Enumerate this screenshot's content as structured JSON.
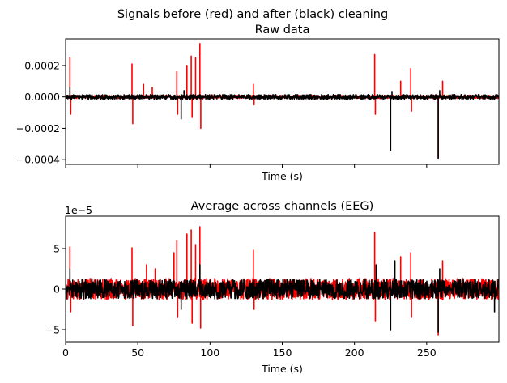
{
  "figure": {
    "suptitle": "Signals before (red) and after (black) cleaning"
  },
  "chart_data": [
    {
      "type": "line",
      "title": "Raw data",
      "xlabel": "Time (s)",
      "ylabel": "",
      "xlim": [
        0,
        300
      ],
      "ylim": [
        -0.00043,
        0.00037
      ],
      "x_ticks": [
        0,
        50,
        100,
        150,
        200,
        250
      ],
      "x_tick_labels_shown": false,
      "y_ticks": [
        -0.0004,
        -0.0002,
        0.0,
        0.0002
      ],
      "y_tick_labels": [
        "−0.0004",
        "−0.0002",
        "0.0000",
        "0.0002"
      ],
      "grid": false,
      "series": [
        {
          "name": "before cleaning",
          "color": "#ff0000",
          "baseline_amplitude": 1e-05,
          "peaks": [
            {
              "x": 3,
              "y": 0.00025
            },
            {
              "x": 3.6,
              "y": -0.00011
            },
            {
              "x": 46,
              "y": 0.00021
            },
            {
              "x": 46.5,
              "y": -0.00017
            },
            {
              "x": 54,
              "y": 8e-05
            },
            {
              "x": 60,
              "y": 6e-05
            },
            {
              "x": 77,
              "y": 0.00016
            },
            {
              "x": 77.6,
              "y": -0.00011
            },
            {
              "x": 84,
              "y": 0.0002
            },
            {
              "x": 87,
              "y": 0.00026
            },
            {
              "x": 87.6,
              "y": -0.00013
            },
            {
              "x": 90,
              "y": 0.00025
            },
            {
              "x": 93,
              "y": 0.00034
            },
            {
              "x": 93.6,
              "y": -0.0002
            },
            {
              "x": 130,
              "y": 8e-05
            },
            {
              "x": 130.5,
              "y": -5e-05
            },
            {
              "x": 214,
              "y": 0.00027
            },
            {
              "x": 214.5,
              "y": -0.00011
            },
            {
              "x": 232,
              "y": 0.0001
            },
            {
              "x": 239,
              "y": 0.00018
            },
            {
              "x": 239.5,
              "y": -9e-05
            },
            {
              "x": 258,
              "y": -0.00039
            },
            {
              "x": 261,
              "y": 0.0001
            }
          ]
        },
        {
          "name": "after cleaning",
          "color": "#000000",
          "baseline_amplitude": 1.5e-05,
          "peaks": [
            {
              "x": 3,
              "y": 6e-05
            },
            {
              "x": 80,
              "y": -0.00014
            },
            {
              "x": 82,
              "y": 4e-05
            },
            {
              "x": 225,
              "y": -0.00034
            },
            {
              "x": 226,
              "y": 3e-05
            },
            {
              "x": 258,
              "y": -0.00039
            },
            {
              "x": 259,
              "y": 4e-05
            }
          ]
        }
      ]
    },
    {
      "type": "line",
      "title": "Average across channels (EEG)",
      "xlabel": "Time (s)",
      "ylabel": "",
      "offset_text": "1e−5",
      "xlim": [
        0,
        300
      ],
      "ylim": [
        -6.5e-05,
        9e-05
      ],
      "x_ticks": [
        0,
        50,
        100,
        150,
        200,
        250
      ],
      "x_tick_labels": [
        "0",
        "50",
        "100",
        "150",
        "200",
        "250"
      ],
      "y_ticks": [
        -5e-05,
        0,
        5e-05
      ],
      "y_tick_labels": [
        "−5",
        "0",
        "5"
      ],
      "grid": false,
      "series": [
        {
          "name": "before cleaning",
          "color": "#ff0000",
          "baseline_amplitude": 1.3e-05,
          "peaks": [
            {
              "x": 3,
              "y": 5.2e-05
            },
            {
              "x": 3.6,
              "y": -2.8e-05
            },
            {
              "x": 46,
              "y": 5.1e-05
            },
            {
              "x": 46.5,
              "y": -4.5e-05
            },
            {
              "x": 56,
              "y": 3e-05
            },
            {
              "x": 62,
              "y": 2.5e-05
            },
            {
              "x": 75,
              "y": 4.5e-05
            },
            {
              "x": 77,
              "y": 6e-05
            },
            {
              "x": 77.6,
              "y": -3.5e-05
            },
            {
              "x": 84,
              "y": 6.8e-05
            },
            {
              "x": 87,
              "y": 7.3e-05
            },
            {
              "x": 87.6,
              "y": -4.2e-05
            },
            {
              "x": 90,
              "y": 5.5e-05
            },
            {
              "x": 93,
              "y": 7.7e-05
            },
            {
              "x": 93.5,
              "y": -4.8e-05
            },
            {
              "x": 130,
              "y": 4.8e-05
            },
            {
              "x": 130.5,
              "y": -2.5e-05
            },
            {
              "x": 214,
              "y": 7e-05
            },
            {
              "x": 214.5,
              "y": -4e-05
            },
            {
              "x": 232,
              "y": 4e-05
            },
            {
              "x": 239,
              "y": 4.5e-05
            },
            {
              "x": 239.5,
              "y": -3.5e-05
            },
            {
              "x": 258,
              "y": -5.7e-05
            },
            {
              "x": 261,
              "y": 3.5e-05
            }
          ]
        },
        {
          "name": "after cleaning",
          "color": "#000000",
          "baseline_amplitude": 1.2e-05,
          "peaks": [
            {
              "x": 3,
              "y": 2.5e-05
            },
            {
              "x": 80,
              "y": -2.5e-05
            },
            {
              "x": 93,
              "y": 3e-05
            },
            {
              "x": 215,
              "y": 3e-05
            },
            {
              "x": 225,
              "y": -5.1e-05
            },
            {
              "x": 228,
              "y": 3.5e-05
            },
            {
              "x": 258,
              "y": -5.3e-05
            },
            {
              "x": 259,
              "y": 2.5e-05
            },
            {
              "x": 297,
              "y": -2.8e-05
            }
          ]
        }
      ]
    }
  ]
}
